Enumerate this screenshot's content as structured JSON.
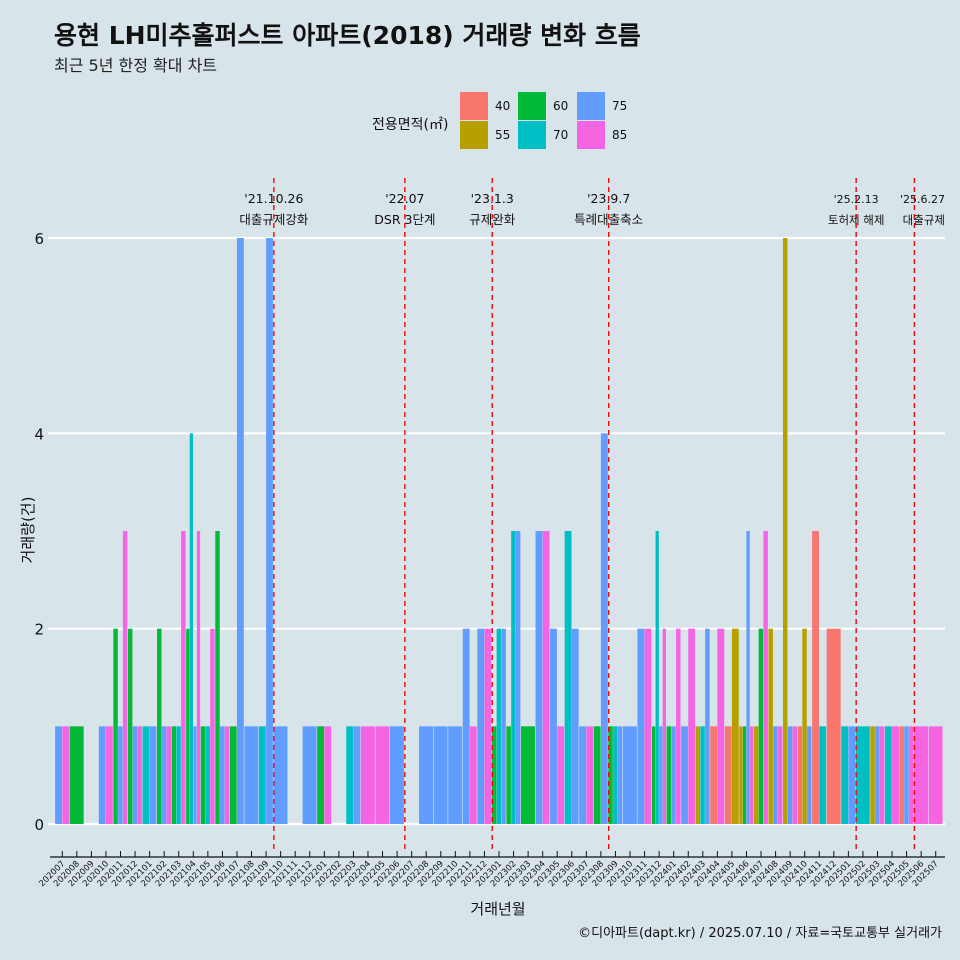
{
  "title": "용현 LH미추홀퍼스트 아파트(2018) 거래량 변화 흐름",
  "subtitle": "최근 5년 한정 확대 차트",
  "caption": "©디아파트(dapt.kr) / 2025.07.10 / 자료=국토교통부 실거래가",
  "legend": {
    "title": "전용면적(㎡)",
    "items": [
      {
        "label": "40",
        "color": "#f8766d"
      },
      {
        "label": "55",
        "color": "#b79f00"
      },
      {
        "label": "60",
        "color": "#00ba38"
      },
      {
        "label": "70",
        "color": "#00bfc4"
      },
      {
        "label": "75",
        "color": "#619cff"
      },
      {
        "label": "85",
        "color": "#f564e3"
      }
    ]
  },
  "chart_data": {
    "type": "bar",
    "xlabel": "거래년월",
    "ylabel": "거래량(건)",
    "ylim": [
      0,
      6
    ],
    "yticks": [
      0,
      2,
      4,
      6
    ],
    "grid": true,
    "legend_position": "top",
    "categories": [
      "202007",
      "202008",
      "202009",
      "202010",
      "202011",
      "202012",
      "202101",
      "202102",
      "202103",
      "202104",
      "202105",
      "202106",
      "202107",
      "202108",
      "202109",
      "202110",
      "202111",
      "202112",
      "202201",
      "202202",
      "202203",
      "202204",
      "202205",
      "202206",
      "202207",
      "202208",
      "202209",
      "202210",
      "202211",
      "202212",
      "202301",
      "202302",
      "202303",
      "202304",
      "202305",
      "202306",
      "202307",
      "202308",
      "202309",
      "202310",
      "202311",
      "202312",
      "202401",
      "202402",
      "202403",
      "202404",
      "202405",
      "202406",
      "202407",
      "202408",
      "202409",
      "202410",
      "202411",
      "202412",
      "202501",
      "202502",
      "202503",
      "202504",
      "202505",
      "202506",
      "202507"
    ],
    "series": [
      {
        "name": "40",
        "values": [
          0,
          0,
          0,
          0,
          0,
          0,
          0,
          0,
          0,
          0,
          0,
          0,
          0,
          0,
          0,
          0,
          0,
          0,
          0,
          0,
          0,
          0,
          0,
          0,
          0,
          0,
          0,
          0,
          0,
          0,
          0,
          0,
          0,
          0,
          0,
          0,
          0,
          0,
          0,
          0,
          0,
          0,
          0,
          0,
          0,
          1,
          1,
          0,
          0,
          0,
          0,
          1,
          3,
          2,
          0,
          0,
          0,
          0,
          1,
          0,
          0
        ]
      },
      {
        "name": "55",
        "values": [
          0,
          0,
          0,
          0,
          0,
          0,
          0,
          0,
          0,
          0,
          0,
          0,
          0,
          0,
          0,
          0,
          0,
          0,
          0,
          0,
          0,
          0,
          0,
          0,
          0,
          0,
          0,
          0,
          0,
          0,
          0,
          0,
          0,
          0,
          0,
          0,
          0,
          0,
          0,
          0,
          0,
          0,
          0,
          0,
          1,
          0,
          2,
          1,
          1,
          2,
          6,
          2,
          0,
          0,
          0,
          0,
          1,
          0,
          0,
          0,
          0
        ]
      },
      {
        "name": "60",
        "values": [
          0,
          1,
          0,
          0,
          2,
          2,
          0,
          2,
          1,
          2,
          1,
          3,
          1,
          0,
          0,
          0,
          0,
          0,
          1,
          0,
          0,
          0,
          0,
          0,
          0,
          0,
          0,
          0,
          0,
          0,
          1,
          1,
          1,
          0,
          0,
          0,
          0,
          1,
          1,
          0,
          0,
          1,
          1,
          0,
          0,
          0,
          0,
          1,
          2,
          0,
          0,
          0,
          0,
          0,
          0,
          0,
          0,
          0,
          0,
          0,
          0
        ]
      },
      {
        "name": "70",
        "values": [
          0,
          0,
          0,
          0,
          0,
          0,
          1,
          0,
          1,
          4,
          1,
          0,
          0,
          0,
          1,
          0,
          0,
          0,
          0,
          0,
          1,
          0,
          0,
          0,
          0,
          0,
          0,
          0,
          0,
          0,
          2,
          3,
          0,
          0,
          0,
          3,
          0,
          0,
          1,
          0,
          0,
          3,
          0,
          0,
          1,
          0,
          0,
          0,
          0,
          0,
          0,
          0,
          1,
          0,
          1,
          1,
          0,
          1,
          0,
          0,
          0
        ]
      },
      {
        "name": "75",
        "values": [
          1,
          0,
          0,
          1,
          1,
          1,
          1,
          1,
          0,
          1,
          0,
          1,
          6,
          1,
          6,
          1,
          0,
          1,
          0,
          0,
          1,
          0,
          0,
          1,
          0,
          1,
          1,
          1,
          2,
          2,
          2,
          3,
          0,
          3,
          2,
          2,
          1,
          4,
          1,
          1,
          2,
          1,
          1,
          1,
          2,
          0,
          0,
          3,
          0,
          1,
          1,
          1,
          0,
          0,
          1,
          0,
          1,
          0,
          1,
          0,
          0
        ]
      },
      {
        "name": "85",
        "values": [
          1,
          0,
          0,
          1,
          3,
          1,
          0,
          1,
          3,
          3,
          2,
          1,
          0,
          0,
          0,
          0,
          0,
          0,
          1,
          0,
          0,
          1,
          1,
          0,
          0,
          0,
          0,
          0,
          1,
          2,
          0,
          0,
          0,
          3,
          1,
          0,
          1,
          0,
          0,
          0,
          2,
          2,
          2,
          2,
          0,
          2,
          0,
          1,
          3,
          1,
          1,
          0,
          0,
          0,
          0,
          0,
          1,
          1,
          1,
          1,
          1
        ]
      }
    ],
    "events": [
      {
        "date": "'21.10.26",
        "label": "대출규제강화",
        "position": "202110"
      },
      {
        "date": "'22.07",
        "label": "DSR 3단계",
        "position": "202207"
      },
      {
        "date": "'23.1.3",
        "label": "규제완화",
        "position": "202301"
      },
      {
        "date": "'23.9.7",
        "label": "특례대출축소",
        "position": "202309"
      },
      {
        "date": "'25.2.13",
        "label": "토허제 해제",
        "position": "202502"
      },
      {
        "date": "'25.6.27",
        "label": "대출규제",
        "position": "202506"
      }
    ]
  }
}
